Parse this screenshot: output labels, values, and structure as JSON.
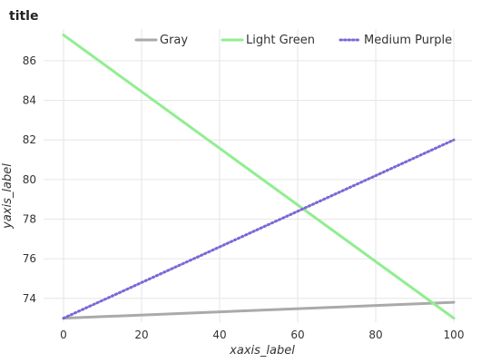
{
  "chart_data": {
    "type": "line",
    "title": "title",
    "xlabel": "xaxis_label",
    "ylabel": "yaxis_label",
    "xlim": [
      0,
      100
    ],
    "ylim": [
      72.8,
      87.6
    ],
    "x_ticks": [
      0,
      20,
      40,
      60,
      80,
      100
    ],
    "y_ticks": [
      74,
      76,
      78,
      80,
      82,
      84,
      86
    ],
    "grid": true,
    "legend": "top",
    "series": [
      {
        "name": "Gray",
        "color": "#aaaaaa",
        "style": "solid",
        "x": [
          0,
          100
        ],
        "y": [
          73.0,
          73.8
        ]
      },
      {
        "name": "Light Green",
        "color": "#90ee90",
        "style": "solid",
        "x": [
          0,
          100
        ],
        "y": [
          87.3,
          73.0
        ]
      },
      {
        "name": "Medium Purple",
        "color": "#7b68d6",
        "style": "dotted",
        "x": [
          0,
          100
        ],
        "y": [
          73.0,
          82.0
        ]
      }
    ]
  }
}
